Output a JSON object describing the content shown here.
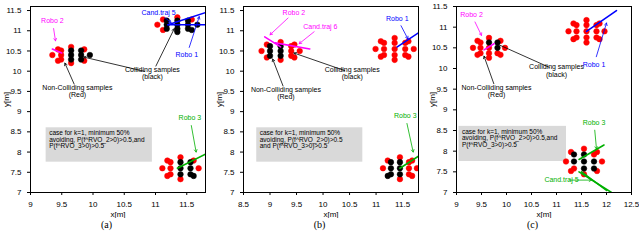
{
  "chart_data": [
    {
      "type": "scatter",
      "caption": "(a)",
      "xlabel": "x[m]",
      "ylabel": "y[m]",
      "xlim": [
        9,
        11.8
      ],
      "ylim": [
        7,
        11.6
      ],
      "xticks": [
        9,
        9.5,
        10,
        10.5,
        11,
        11.5
      ],
      "yticks": [
        7,
        7.5,
        8,
        8.5,
        9,
        9.5,
        10,
        10.5,
        11,
        11.5
      ],
      "non_colliding": {
        "color": "#ff0000",
        "marker": "circle",
        "points": [
          [
            9.49,
            10.4
          ],
          [
            9.49,
            10.51
          ],
          [
            9.49,
            10.29
          ],
          [
            9.35,
            10.4
          ],
          [
            9.65,
            10.6
          ],
          [
            9.65,
            10.2
          ],
          [
            9.86,
            10.54
          ],
          [
            9.44,
            10.54
          ],
          [
            9.86,
            10.26
          ],
          [
            9.44,
            10.26
          ],
          [
            11.03,
            11.15
          ],
          [
            11.35,
            11.33
          ],
          [
            11.58,
            11.28
          ],
          [
            11.12,
            11.28
          ],
          [
            11.12,
            11.02
          ],
          [
            11.24,
            7.6
          ],
          [
            11.24,
            7.75
          ],
          [
            11.24,
            7.45
          ],
          [
            11.69,
            7.6
          ],
          [
            11.11,
            7.6
          ],
          [
            11.4,
            7.87
          ],
          [
            11.4,
            7.33
          ],
          [
            11.61,
            7.79
          ],
          [
            11.19,
            7.79
          ],
          [
            11.19,
            7.41
          ]
        ]
      },
      "colliding": {
        "color": "#000000",
        "marker": "circle",
        "points": [
          [
            9.65,
            10.4
          ],
          [
            9.81,
            10.4
          ],
          [
            9.65,
            10.51
          ],
          [
            9.65,
            10.29
          ],
          [
            9.81,
            10.51
          ],
          [
            9.81,
            10.29
          ],
          [
            9.95,
            10.4
          ],
          [
            11.35,
            11.15
          ],
          [
            11.52,
            11.15
          ],
          [
            11.18,
            11.15
          ],
          [
            11.35,
            11.25
          ],
          [
            11.35,
            11.05
          ],
          [
            11.52,
            11.25
          ],
          [
            11.18,
            11.25
          ],
          [
            11.52,
            11.05
          ],
          [
            11.18,
            11.05
          ],
          [
            11.67,
            11.15
          ],
          [
            11.35,
            10.97
          ],
          [
            11.58,
            11.02
          ],
          [
            11.4,
            7.6
          ],
          [
            11.56,
            7.6
          ],
          [
            11.4,
            7.75
          ],
          [
            11.4,
            7.45
          ],
          [
            11.56,
            7.75
          ],
          [
            11.56,
            7.45
          ],
          [
            11.61,
            7.41
          ]
        ]
      },
      "trajectories": [
        {
          "color": "#0000ff",
          "points": [
            [
              11.2,
              11.15
            ],
            [
              11.8,
              11.45
            ]
          ]
        },
        {
          "color": "#0000ff",
          "points": [
            [
              11.2,
              11.15
            ],
            [
              11.8,
              11.15
            ]
          ]
        },
        {
          "color": "#ff00ff",
          "points": [
            [
              9.35,
              10.55
            ],
            [
              9.5,
              10.45
            ]
          ]
        },
        {
          "color": "#00b000",
          "points": [
            [
              11.35,
              7.6
            ],
            [
              11.8,
              7.95
            ]
          ]
        }
      ],
      "annotations": [
        {
          "text": "Robo 2",
          "color": "#ff00ff",
          "x": 9.35,
          "y": 11.25,
          "arrows": [
            [
              9.4,
              10.75
            ]
          ]
        },
        {
          "text": "Cand.traj 5",
          "color": "#0000ff",
          "x": 11.05,
          "y": 11.45,
          "arrows": [
            [
              11.25,
              11.2
            ]
          ]
        },
        {
          "text": "Robo 1",
          "color": "#0000ff",
          "x": 11.5,
          "y": 10.4,
          "arrows": [
            [
              11.7,
              11.35
            ]
          ]
        },
        {
          "text": "Colliding samples\n(black)",
          "color": "#000000",
          "x": 10.95,
          "y": 9.95,
          "arrows": [
            [
              9.85,
              10.35
            ],
            [
              11.3,
              11.05
            ]
          ]
        },
        {
          "text": "Non-Colliding samples\n(Red)",
          "color": "#000000",
          "x": 9.75,
          "y": 9.5,
          "arrows": [
            [
              9.55,
              10.2
            ]
          ]
        },
        {
          "text": "Robo 3",
          "color": "#00b000",
          "x": 11.55,
          "y": 8.85,
          "arrows": [
            [
              11.65,
              8.0
            ]
          ]
        }
      ],
      "note": {
        "lines": [
          "case for k=1, minimum 50%",
          "avoiding, P(f^RVO_2>0)>0.5,and",
          "P(f^RVO_3>0)>0.5"
        ],
        "color": "#d9d9d9",
        "x1": 9.25,
        "x2": 10.95,
        "y1": 7.75,
        "y2": 8.6
      }
    },
    {
      "type": "scatter",
      "caption": "(b)",
      "xlabel": "x[m]",
      "ylabel": "y[m]",
      "xlim": [
        8.5,
        11.8
      ],
      "ylim": [
        7,
        11.6
      ],
      "xticks": [
        8.5,
        9,
        9.5,
        10,
        10.5,
        11,
        11.5
      ],
      "yticks": [
        7,
        7.5,
        8,
        8.5,
        9,
        9.5,
        10,
        10.5,
        11,
        11.5
      ],
      "non_colliding": {
        "color": "#ff0000",
        "marker": "circle",
        "points": [
          [
            9.4,
            10.5
          ],
          [
            9.4,
            10.62
          ],
          [
            9.4,
            10.38
          ],
          [
            9.56,
            10.5
          ],
          [
            8.84,
            10.5
          ],
          [
            9.2,
            10.72
          ],
          [
            9.2,
            10.28
          ],
          [
            9.46,
            10.66
          ],
          [
            8.94,
            10.66
          ],
          [
            9.46,
            10.34
          ],
          [
            8.94,
            10.34
          ],
          [
            11.35,
            10.55
          ],
          [
            11.55,
            10.55
          ],
          [
            11.15,
            10.55
          ],
          [
            11.35,
            10.7
          ],
          [
            11.35,
            10.4
          ],
          [
            11.55,
            10.7
          ],
          [
            11.15,
            10.7
          ],
          [
            11.55,
            10.4
          ],
          [
            11.15,
            10.4
          ],
          [
            11.71,
            10.55
          ],
          [
            10.99,
            10.55
          ],
          [
            11.35,
            10.82
          ],
          [
            11.35,
            10.28
          ],
          [
            11.61,
            10.74
          ],
          [
            11.09,
            10.74
          ],
          [
            11.61,
            10.36
          ],
          [
            11.09,
            10.36
          ],
          [
            11.62,
            7.6
          ],
          [
            11.62,
            7.75
          ],
          [
            11.62,
            7.45
          ],
          [
            11.77,
            7.6
          ],
          [
            11.13,
            7.6
          ],
          [
            11.45,
            7.87
          ],
          [
            11.45,
            7.33
          ],
          [
            11.68,
            7.79
          ],
          [
            11.22,
            7.79
          ],
          [
            11.68,
            7.41
          ]
        ]
      },
      "colliding": {
        "color": "#000000",
        "marker": "circle",
        "points": [
          [
            9.2,
            10.5
          ],
          [
            9.0,
            10.5
          ],
          [
            9.2,
            10.62
          ],
          [
            9.2,
            10.38
          ],
          [
            9.0,
            10.62
          ],
          [
            9.0,
            10.38
          ],
          [
            11.45,
            7.6
          ],
          [
            11.28,
            7.6
          ],
          [
            11.45,
            7.75
          ],
          [
            11.45,
            7.45
          ],
          [
            11.28,
            7.75
          ],
          [
            11.28,
            7.45
          ],
          [
            11.22,
            7.41
          ]
        ]
      },
      "trajectories": [
        {
          "color": "#0000ff",
          "points": [
            [
              11.4,
              10.6
            ],
            [
              11.8,
              10.95
            ]
          ]
        },
        {
          "color": "#ff00ff",
          "points": [
            [
              8.9,
              10.85
            ],
            [
              9.2,
              10.6
            ]
          ]
        },
        {
          "color": "#ff00ff",
          "points": [
            [
              9.1,
              10.7
            ],
            [
              9.75,
              10.55
            ]
          ]
        },
        {
          "color": "#00b000",
          "points": [
            [
              11.45,
              7.6
            ],
            [
              11.8,
              7.9
            ]
          ]
        }
      ],
      "annotations": [
        {
          "text": "Robo 2",
          "color": "#ff00ff",
          "x": 9.45,
          "y": 11.45,
          "arrows": [
            [
              9.0,
              10.9
            ]
          ]
        },
        {
          "text": "Cand.traj 6",
          "color": "#ff00ff",
          "x": 9.95,
          "y": 11.1,
          "arrows": [
            [
              9.55,
              10.68
            ]
          ]
        },
        {
          "text": "Robo 1",
          "color": "#0000ff",
          "x": 11.4,
          "y": 11.3,
          "arrows": [
            [
              11.6,
              10.8
            ]
          ]
        },
        {
          "text": "Colliding samples\n(black)",
          "color": "#000000",
          "x": 10.55,
          "y": 9.95,
          "arrows": [
            [
              9.45,
              10.45
            ]
          ]
        },
        {
          "text": "Non-Colliding samples\n(Red)",
          "color": "#000000",
          "x": 9.3,
          "y": 9.45,
          "arrows": [
            [
              9.05,
              10.3
            ]
          ]
        },
        {
          "text": "Robo 3",
          "color": "#00b000",
          "x": 11.55,
          "y": 8.9,
          "arrows": [
            [
              11.7,
              8.0
            ]
          ]
        }
      ],
      "note": {
        "lines": [
          "case for k=1, minimum 50%",
          "avoiding, P(f^RVO_2>0)>0.5",
          "and P(f^RVO_3>0)>0.5"
        ],
        "color": "#d9d9d9",
        "x1": 8.75,
        "x2": 10.75,
        "y1": 7.75,
        "y2": 8.6
      }
    },
    {
      "type": "scatter",
      "caption": "(c)",
      "xlabel": "x[m]",
      "ylabel": "y[m]",
      "xlim": [
        9,
        12.5
      ],
      "ylim": [
        7,
        11.5
      ],
      "xticks": [
        9,
        9.5,
        10,
        10.5,
        11,
        11.5,
        12,
        12.5
      ],
      "yticks": [
        7,
        7.5,
        8,
        8.5,
        9,
        9.5,
        10,
        10.5,
        11,
        11.5
      ],
      "non_colliding": {
        "color": "#ff0000",
        "marker": "circle",
        "points": [
          [
            9.65,
            10.5
          ],
          [
            9.48,
            10.5
          ],
          [
            9.65,
            10.37
          ],
          [
            9.48,
            10.63
          ],
          [
            9.82,
            10.37
          ],
          [
            9.48,
            10.37
          ],
          [
            9.97,
            10.5
          ],
          [
            9.33,
            10.5
          ],
          [
            9.65,
            10.74
          ],
          [
            9.65,
            10.26
          ],
          [
            9.88,
            10.67
          ],
          [
            9.42,
            10.67
          ],
          [
            9.88,
            10.33
          ],
          [
            9.42,
            10.33
          ],
          [
            11.6,
            10.9
          ],
          [
            11.8,
            10.9
          ],
          [
            11.4,
            10.9
          ],
          [
            11.6,
            11.05
          ],
          [
            11.6,
            10.75
          ],
          [
            11.8,
            11.05
          ],
          [
            11.4,
            11.05
          ],
          [
            11.8,
            10.75
          ],
          [
            11.4,
            10.75
          ],
          [
            11.96,
            10.9
          ],
          [
            11.24,
            10.9
          ],
          [
            11.6,
            11.17
          ],
          [
            11.6,
            10.63
          ],
          [
            11.86,
            11.09
          ],
          [
            11.34,
            11.09
          ],
          [
            11.86,
            10.71
          ],
          [
            11.34,
            10.71
          ],
          [
            11.75,
            7.92
          ],
          [
            11.35,
            7.58
          ],
          [
            11.91,
            7.75
          ],
          [
            11.19,
            7.75
          ],
          [
            11.55,
            8.06
          ],
          [
            11.55,
            7.44
          ],
          [
            11.81,
            7.98
          ],
          [
            11.29,
            7.98
          ],
          [
            11.81,
            7.52
          ],
          [
            11.29,
            7.52
          ]
        ]
      },
      "colliding": {
        "color": "#000000",
        "marker": "circle",
        "points": [
          [
            9.82,
            10.5
          ],
          [
            9.65,
            10.63
          ],
          [
            9.82,
            10.63
          ],
          [
            11.55,
            7.75
          ],
          [
            11.75,
            7.75
          ],
          [
            11.35,
            7.75
          ],
          [
            11.55,
            7.92
          ],
          [
            11.55,
            7.58
          ],
          [
            11.35,
            7.92
          ],
          [
            11.75,
            7.58
          ]
        ]
      },
      "trajectories": [
        {
          "color": "#0000ff",
          "points": [
            [
              11.6,
              10.9
            ],
            [
              12.2,
              11.4
            ]
          ]
        },
        {
          "color": "#ff00ff",
          "points": [
            [
              9.55,
              10.45
            ],
            [
              9.75,
              10.6
            ]
          ]
        },
        {
          "color": "#00b000",
          "points": [
            [
              11.45,
              7.8
            ],
            [
              11.95,
              8.15
            ]
          ]
        },
        {
          "color": "#00b000",
          "points": [
            [
              11.45,
              7.5
            ],
            [
              12.1,
              7.0
            ]
          ]
        },
        {
          "color": "#00b000",
          "points": [
            [
              11.5,
              7.5
            ],
            [
              12.0,
              7.05
            ]
          ]
        }
      ],
      "annotations": [
        {
          "text": "Robo 2",
          "color": "#ff00ff",
          "x": 9.3,
          "y": 11.3,
          "arrows": [
            [
              9.5,
              10.8
            ]
          ]
        },
        {
          "text": "Robo 1",
          "color": "#0000ff",
          "x": 11.75,
          "y": 10.1,
          "arrows": [
            [
              12.0,
              11.1
            ]
          ]
        },
        {
          "text": "Colliding samples\n(black)",
          "color": "#000000",
          "x": 11.0,
          "y": 9.95,
          "arrows": [
            [
              9.8,
              10.6
            ]
          ]
        },
        {
          "text": "Non-Colliding samples\n(Red)",
          "color": "#000000",
          "x": 9.8,
          "y": 9.45,
          "arrows": [
            [
              9.55,
              10.3
            ]
          ]
        },
        {
          "text": "Robo 3",
          "color": "#00b000",
          "x": 11.75,
          "y": 8.7,
          "arrows": [
            [
              11.8,
              8.05
            ]
          ]
        },
        {
          "text": "Cand.traj 5",
          "color": "#00b000",
          "x": 11.1,
          "y": 7.3,
          "arrows": [
            [
              11.7,
              7.3
            ]
          ]
        }
      ],
      "note": {
        "lines": [
          "case for k=1, minimum 50%",
          "avoiding, P(f^RVO_2>0)>0.5,and",
          "P(f^RVO_3>0)>0.5"
        ],
        "color": "#d9d9d9",
        "x1": 9.05,
        "x2": 11.2,
        "y1": 7.75,
        "y2": 8.6
      }
    }
  ]
}
